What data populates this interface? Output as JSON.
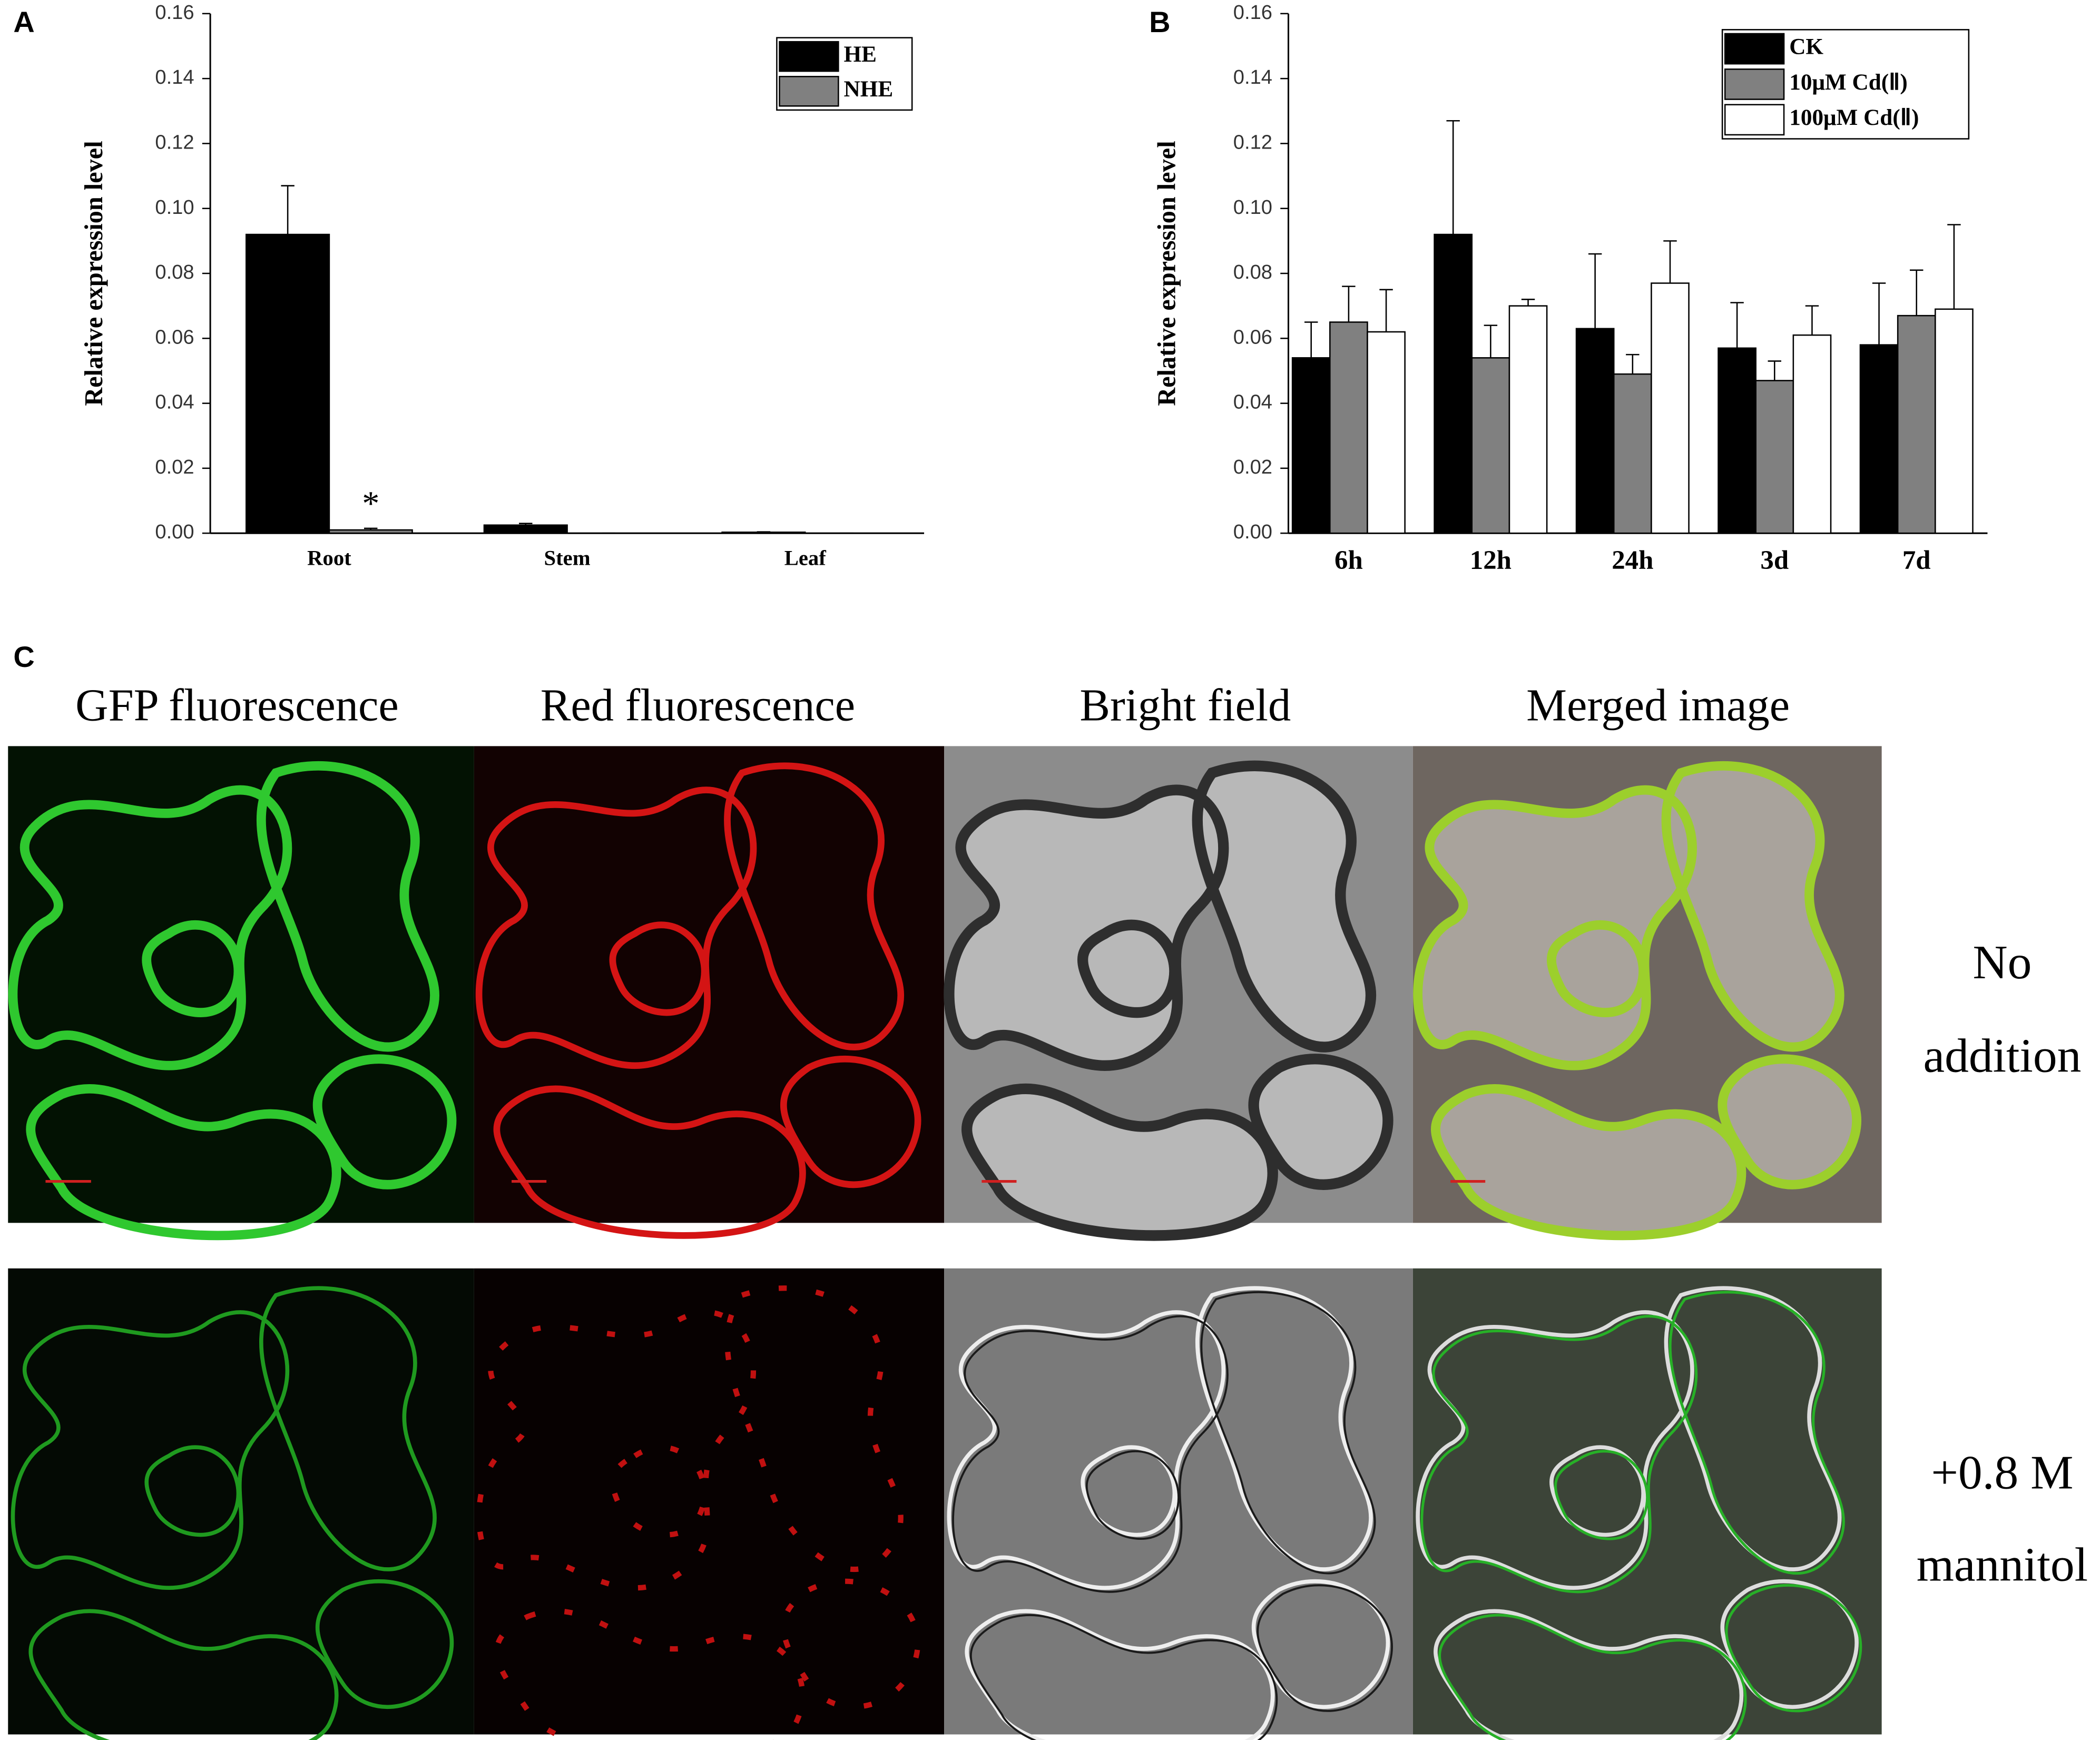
{
  "chart_data": [
    {
      "type": "bar",
      "panel": "A",
      "y_label": "Relative expression level",
      "categories": [
        "Root",
        "Stem",
        "Leaf"
      ],
      "series": [
        {
          "name": "HE",
          "color": "#000000",
          "values": [
            0.092,
            0.0025,
            0.0003
          ],
          "errors": [
            0.015,
            0.0005,
            0.0001
          ]
        },
        {
          "name": "NHE",
          "color": "#808080",
          "values": [
            0.001,
            0,
            0
          ],
          "errors": [
            0.0005,
            0,
            0
          ]
        }
      ],
      "annotation": "*",
      "ylim": [
        0,
        0.16
      ],
      "yticks": [
        {
          "value": 0,
          "label": "0.00"
        },
        {
          "value": 0.02,
          "label": "0.02"
        },
        {
          "value": 0.04,
          "label": "0.04"
        },
        {
          "value": 0.06,
          "label": "0.06"
        },
        {
          "value": 0.08,
          "label": "0.08"
        },
        {
          "value": 0.1,
          "label": "0.10"
        },
        {
          "value": 0.12,
          "label": "0.12"
        },
        {
          "value": 0.14,
          "label": "0.14"
        },
        {
          "value": 0.16,
          "label": "0.16"
        }
      ],
      "legend": "top-right"
    },
    {
      "type": "bar",
      "panel": "B",
      "y_label": "Relative expression level",
      "categories": [
        "6h",
        "12h",
        "24h",
        "3d",
        "7d"
      ],
      "series": [
        {
          "name": "CK",
          "color": "#000000",
          "values": [
            0.054,
            0.092,
            0.063,
            0.057,
            0.058
          ],
          "errors": [
            0.011,
            0.035,
            0.023,
            0.014,
            0.019
          ]
        },
        {
          "name": "10μM Cd(Ⅱ)",
          "color": "#808080",
          "values": [
            0.065,
            0.054,
            0.049,
            0.047,
            0.067
          ],
          "errors": [
            0.011,
            0.01,
            0.006,
            0.006,
            0.014
          ]
        },
        {
          "name": "100μM Cd(Ⅱ)",
          "color": "#ffffff",
          "values": [
            0.062,
            0.07,
            0.077,
            0.061,
            0.069
          ],
          "errors": [
            0.013,
            0.002,
            0.013,
            0.009,
            0.026
          ]
        }
      ],
      "ylim": [
        0,
        0.16
      ],
      "yticks": [
        {
          "value": 0,
          "label": "0.00"
        },
        {
          "value": 0.02,
          "label": "0.02"
        },
        {
          "value": 0.04,
          "label": "0.04"
        },
        {
          "value": 0.06,
          "label": "0.06"
        },
        {
          "value": 0.08,
          "label": "0.08"
        },
        {
          "value": 0.1,
          "label": "0.10"
        },
        {
          "value": 0.12,
          "label": "0.12"
        },
        {
          "value": 0.14,
          "label": "0.14"
        },
        {
          "value": 0.16,
          "label": "0.16"
        }
      ],
      "legend": "top-right"
    }
  ],
  "panel_c": {
    "panel": "C",
    "column_titles": [
      "GFP fluorescence",
      "Red fluorescence",
      "Bright field",
      "Merged image"
    ],
    "row_labels": [
      [
        "No",
        "addition"
      ],
      [
        "+0.8 M",
        "mannitol"
      ]
    ]
  }
}
